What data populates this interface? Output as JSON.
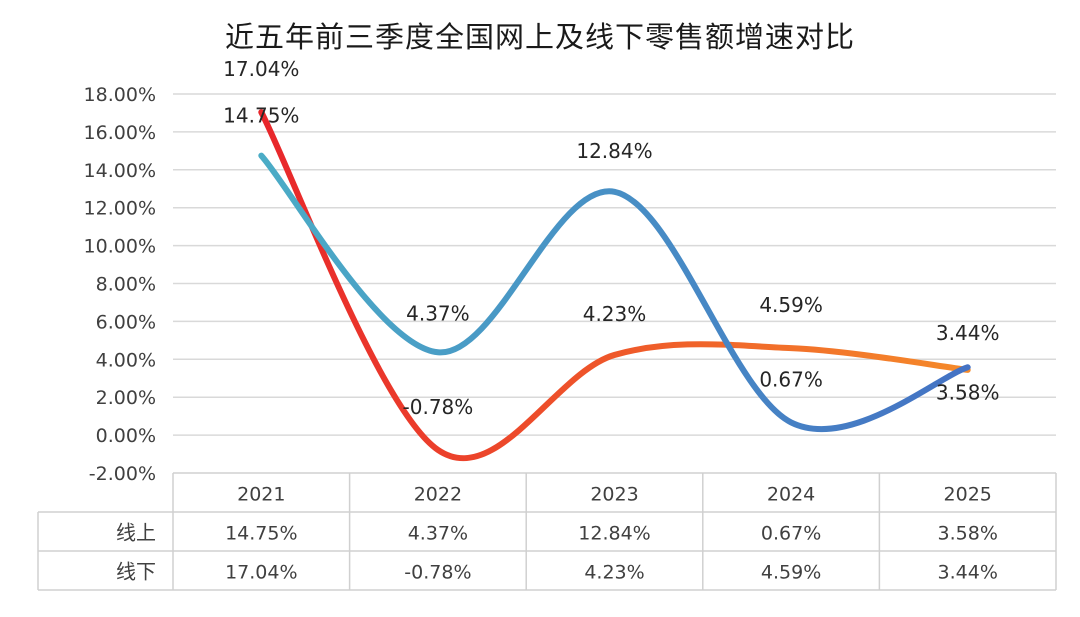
{
  "chart_data": {
    "type": "line",
    "title": "近五年前三季度全国网上及线下零售额增速对比",
    "categories": [
      "2021",
      "2022",
      "2023",
      "2024",
      "2025"
    ],
    "series": [
      {
        "name": "线上",
        "values": [
          14.75,
          4.37,
          12.84,
          0.67,
          3.58
        ],
        "labels": [
          "14.75%",
          "4.37%",
          "12.84%",
          "0.67%",
          "3.58%"
        ],
        "color_start": "#4BACC6",
        "color_end": "#4472C4"
      },
      {
        "name": "线下",
        "values": [
          17.04,
          -0.78,
          4.23,
          4.59,
          3.44
        ],
        "labels": [
          "17.04%",
          "-0.78%",
          "4.23%",
          "4.59%",
          "3.44%"
        ],
        "color_start": "#E8262B",
        "color_end": "#F58A2A"
      }
    ],
    "yaxis": {
      "min": -2,
      "max": 18,
      "step": 2,
      "ticks": [
        "-2.00%",
        "0.00%",
        "2.00%",
        "4.00%",
        "6.00%",
        "8.00%",
        "10.00%",
        "12.00%",
        "14.00%",
        "16.00%",
        "18.00%"
      ]
    },
    "xlabel": "",
    "ylabel": "",
    "grid": true,
    "smooth": true,
    "legend": "data-table-below"
  }
}
